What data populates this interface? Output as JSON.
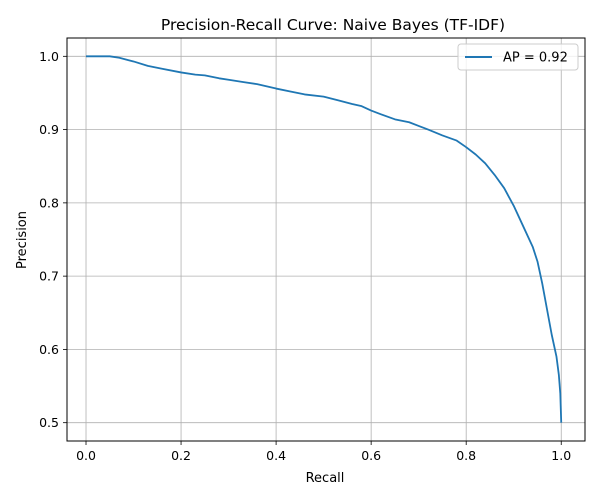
{
  "chart_data": {
    "type": "line",
    "title": "Precision-Recall Curve: Naive Bayes (TF-IDF)",
    "xlabel": "Recall",
    "ylabel": "Precision",
    "xlim": [
      -0.04,
      1.05
    ],
    "ylim": [
      0.475,
      1.025
    ],
    "xticks": [
      0.0,
      0.2,
      0.4,
      0.6,
      0.8,
      1.0
    ],
    "xtick_labels": [
      "0.0",
      "0.2",
      "0.4",
      "0.6",
      "0.8",
      "1.0"
    ],
    "yticks": [
      0.5,
      0.6,
      0.7,
      0.8,
      0.9,
      1.0
    ],
    "ytick_labels": [
      "0.5",
      "0.6",
      "0.7",
      "0.8",
      "0.9",
      "1.0"
    ],
    "grid": true,
    "legend_position": "top-right",
    "series": [
      {
        "name": "AP = 0.92",
        "color": "#1f77b4",
        "x": [
          0.0,
          0.02,
          0.05,
          0.07,
          0.1,
          0.13,
          0.16,
          0.2,
          0.23,
          0.25,
          0.28,
          0.3,
          0.33,
          0.36,
          0.4,
          0.43,
          0.46,
          0.5,
          0.53,
          0.56,
          0.58,
          0.6,
          0.62,
          0.65,
          0.68,
          0.7,
          0.72,
          0.75,
          0.78,
          0.8,
          0.82,
          0.84,
          0.86,
          0.88,
          0.9,
          0.92,
          0.94,
          0.95,
          0.96,
          0.97,
          0.98,
          0.99,
          0.995,
          0.998,
          1.0
        ],
        "y": [
          1.0,
          1.0,
          1.0,
          0.998,
          0.993,
          0.987,
          0.983,
          0.978,
          0.975,
          0.974,
          0.97,
          0.968,
          0.965,
          0.962,
          0.956,
          0.952,
          0.948,
          0.945,
          0.94,
          0.935,
          0.932,
          0.926,
          0.921,
          0.914,
          0.91,
          0.905,
          0.9,
          0.892,
          0.885,
          0.876,
          0.866,
          0.854,
          0.838,
          0.82,
          0.796,
          0.768,
          0.74,
          0.72,
          0.69,
          0.655,
          0.62,
          0.59,
          0.565,
          0.54,
          0.5
        ]
      }
    ]
  }
}
